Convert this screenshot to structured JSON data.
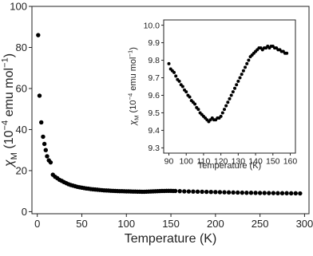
{
  "chart_data": [
    {
      "type": "scatter",
      "color": "#000000",
      "xlabel": "Temperature (K)",
      "ylabel": [
        {
          "text": "χ",
          "style": "italic"
        },
        {
          "text": "M",
          "style": "sub"
        },
        {
          "text": " (10",
          "style": "normal"
        },
        {
          "text": "−4",
          "style": "sup"
        },
        {
          "text": " emu mol",
          "style": "normal"
        },
        {
          "text": "−1",
          "style": "sup"
        },
        {
          "text": ")",
          "style": "normal"
        }
      ],
      "xlim": [
        -6,
        305
      ],
      "ylim": [
        -1,
        100
      ],
      "xticks": [
        0,
        50,
        100,
        150,
        200,
        250,
        300
      ],
      "yticks": [
        0,
        20,
        40,
        60,
        80,
        100
      ],
      "x": [
        1,
        2.5,
        4.5,
        6.5,
        8,
        9.5,
        11,
        13,
        15,
        17.5,
        20,
        22.5,
        25,
        27.5,
        30,
        32.5,
        35,
        37.5,
        40,
        42.5,
        45,
        47.5,
        50,
        52.5,
        55,
        57.5,
        60,
        62.5,
        65,
        67.5,
        70,
        72.5,
        75,
        77.5,
        80,
        82.5,
        85,
        87.5,
        90,
        92.5,
        95,
        97.5,
        100,
        102.5,
        105,
        107.5,
        110,
        112.5,
        115,
        117.5,
        120,
        122.5,
        125,
        127.5,
        130,
        132.5,
        135,
        137.5,
        140,
        142.5,
        145,
        147.5,
        150,
        152.5,
        155,
        160,
        165,
        170,
        175,
        180,
        185,
        190,
        195,
        200,
        205,
        210,
        215,
        220,
        225,
        230,
        235,
        240,
        245,
        250,
        255,
        260,
        265,
        270,
        275,
        280,
        285,
        290,
        295
      ],
      "values": [
        86,
        56.5,
        43.5,
        36.5,
        33,
        30,
        27,
        25,
        24,
        18,
        17,
        16.3,
        15.5,
        15,
        14.4,
        13.9,
        13.4,
        13,
        12.7,
        12.4,
        12.1,
        11.9,
        11.7,
        11.5,
        11.3,
        11.2,
        11.0,
        10.9,
        10.8,
        10.7,
        10.6,
        10.5,
        10.4,
        10.35,
        10.3,
        10.2,
        10.15,
        10.1,
        10.05,
        10.0,
        10.0,
        9.95,
        9.9,
        9.9,
        9.85,
        9.8,
        9.8,
        9.75,
        9.75,
        9.7,
        9.7,
        9.75,
        9.8,
        9.85,
        9.9,
        9.95,
        10.0,
        10.05,
        10.1,
        10.1,
        10.15,
        10.15,
        10.15,
        10.1,
        10.1,
        10.0,
        9.9,
        9.85,
        9.8,
        9.75,
        9.7,
        9.65,
        9.6,
        9.55,
        9.5,
        9.45,
        9.4,
        9.35,
        9.3,
        9.25,
        9.2,
        9.2,
        9.15,
        9.1,
        9.1,
        9.05,
        9.05,
        9.0,
        9.0,
        9.0,
        8.95,
        8.95,
        8.9
      ]
    },
    {
      "type": "scatter",
      "color": "#000000",
      "xlabel": "Temperature (K)",
      "ylabel": [
        {
          "text": "χ",
          "style": "italic"
        },
        {
          "text": "M",
          "style": "sub"
        },
        {
          "text": " (10",
          "style": "normal"
        },
        {
          "text": "−4",
          "style": "sup"
        },
        {
          "text": " emu mol",
          "style": "normal"
        },
        {
          "text": "−1",
          "style": "sup"
        },
        {
          "text": ")",
          "style": "normal"
        }
      ],
      "xlim": [
        87,
        163
      ],
      "ylim": [
        9.27,
        10.03
      ],
      "xticks": [
        90,
        100,
        110,
        120,
        130,
        140,
        150,
        160
      ],
      "yticks": [
        9.3,
        9.4,
        9.5,
        9.6,
        9.7,
        9.8,
        9.9,
        {
          "value": 10,
          "label": "10.0"
        }
      ],
      "x": [
        90,
        91,
        92,
        93,
        94,
        95,
        96,
        97,
        98,
        99,
        100,
        101,
        102,
        103,
        104,
        105,
        106,
        107,
        108,
        109,
        110,
        111,
        112,
        113,
        114,
        115,
        116,
        117,
        118,
        119,
        120,
        121,
        122,
        123,
        124,
        125,
        126,
        127,
        128,
        129,
        130,
        131,
        132,
        133,
        134,
        135,
        136,
        137,
        138,
        139,
        140,
        141,
        142,
        143,
        144,
        145,
        146,
        147,
        148,
        149,
        150,
        151,
        152,
        153,
        154,
        155,
        156,
        157,
        158
      ],
      "values": [
        9.78,
        9.75,
        9.74,
        9.73,
        9.71,
        9.69,
        9.68,
        9.66,
        9.65,
        9.63,
        9.62,
        9.6,
        9.59,
        9.57,
        9.56,
        9.55,
        9.53,
        9.52,
        9.5,
        9.49,
        9.48,
        9.47,
        9.46,
        9.45,
        9.46,
        9.47,
        9.46,
        9.46,
        9.47,
        9.47,
        9.48,
        9.5,
        9.52,
        9.54,
        9.56,
        9.58,
        9.6,
        9.62,
        9.64,
        9.66,
        9.68,
        9.7,
        9.72,
        9.74,
        9.76,
        9.78,
        9.8,
        9.82,
        9.83,
        9.84,
        9.85,
        9.86,
        9.87,
        9.87,
        9.86,
        9.87,
        9.87,
        9.88,
        9.87,
        9.88,
        9.88,
        9.87,
        9.87,
        9.86,
        9.86,
        9.85,
        9.85,
        9.84,
        9.84
      ]
    }
  ]
}
